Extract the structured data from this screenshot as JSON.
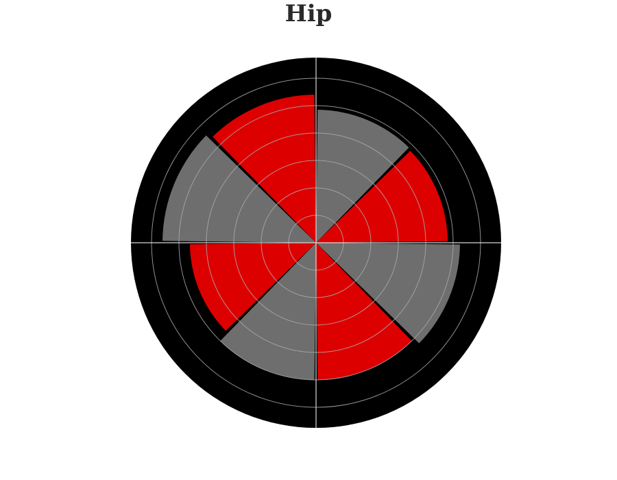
{
  "chart_data": {
    "type": "bar",
    "subtype": "polar-bar",
    "title": "Hip",
    "radial_axis": {
      "range": [
        0,
        6
      ],
      "grid_step": 1,
      "tick_labels_visible": false
    },
    "angular_axis": {
      "direction": "clockwise",
      "zero": "top",
      "sector_count": 8
    },
    "series": [
      {
        "color": "#dd0000",
        "values": [
          {
            "center_deg": 337.5,
            "value": 5.4
          },
          {
            "center_deg": 67.5,
            "value": 4.8
          },
          {
            "center_deg": 157.5,
            "value": 5.0
          },
          {
            "center_deg": 247.5,
            "value": 4.6
          }
        ]
      },
      {
        "color": "#6e6e6e",
        "values": [
          {
            "center_deg": 22.5,
            "value": 4.85
          },
          {
            "center_deg": 112.5,
            "value": 5.25
          },
          {
            "center_deg": 202.5,
            "value": 5.0
          },
          {
            "center_deg": 292.5,
            "value": 5.6
          }
        ]
      }
    ],
    "background_color": "#000000",
    "gridline_color": "#aaaaaa",
    "grid": true,
    "legend": "none"
  }
}
